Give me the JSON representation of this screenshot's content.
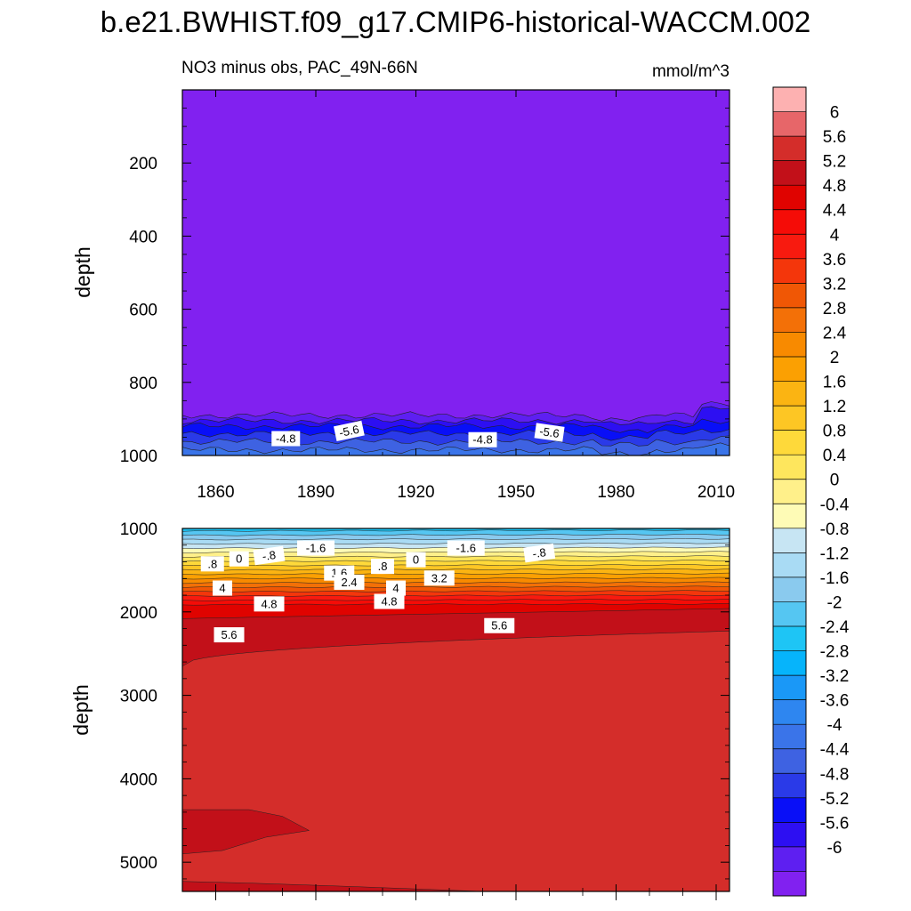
{
  "title": "b.e21.BWHIST.f09_g17.CMIP6-historical-WACCM.002",
  "colors": [
    "#8121f0",
    "#5e1ff1",
    "#2d0ff2",
    "#090ff7",
    "#2a3ae8",
    "#3e62e2",
    "#3a74e9",
    "#2e86f0",
    "#1a98f7",
    "#06b4fb",
    "#1ec5f5",
    "#55c6f2",
    "#8acaee",
    "#a9dbf4",
    "#c7e5f3",
    "#fefbb6",
    "#fff08a",
    "#fee65d",
    "#fed93a",
    "#fdc624",
    "#fbb412",
    "#fba002",
    "#f88a00",
    "#f37007",
    "#f05705",
    "#f4360b",
    "#f81a0f",
    "#f50c07",
    "#e00300",
    "#c21019",
    "#d42d2a",
    "#e76669",
    "#fdb1b1"
  ],
  "chart_data": [
    {
      "type": "contour",
      "subtitle_left": "NO3 minus obs, PAC_49N-66N",
      "subtitle_right": "mmol/m^3",
      "ylabel": "depth",
      "xlabel": "",
      "xlim": [
        1850,
        2014
      ],
      "ylim": [
        0,
        1000
      ],
      "y_inverted": true,
      "xticks": [
        "1860",
        "1890",
        "1920",
        "1950",
        "1980",
        "2010"
      ],
      "yticks": [
        "200",
        "400",
        "600",
        "800",
        "1000"
      ],
      "contour_labels": [
        "-4.8",
        "-5.6",
        "-4.8",
        "-5.6"
      ],
      "description_levels": {
        "surface_to_880m": -6,
        "880_to_1000m": "-6 to -3.6"
      }
    },
    {
      "type": "contour",
      "ylabel": "depth",
      "xlim": [
        1850,
        2014
      ],
      "ylim": [
        1000,
        5350
      ],
      "y_inverted": true,
      "yticks": [
        "1000",
        "2000",
        "3000",
        "4000",
        "5000"
      ],
      "contour_labels": [
        ".8",
        "0",
        "-.8",
        "-1.6",
        "-1.6",
        "-.8",
        "0",
        ".8",
        "1.6",
        "3.2",
        "2.4",
        "4",
        "4",
        "4.8",
        "4.8",
        "5.6",
        "5.6"
      ],
      "description_levels": {
        "1000_to_2000m": "-2 to 5.2",
        "2000_to_2500m": 5.6,
        "below_2500m": 6
      }
    }
  ],
  "colorbar": {
    "labels": [
      "6",
      "5.6",
      "5.2",
      "4.8",
      "4.4",
      "4",
      "3.6",
      "3.2",
      "2.8",
      "2.4",
      "2",
      "1.6",
      "1.2",
      "0.8",
      "0.4",
      "0",
      "-0.4",
      "-0.8",
      "-1.2",
      "-1.6",
      "-2",
      "-2.4",
      "-2.8",
      "-3.2",
      "-3.6",
      "-4",
      "-4.4",
      "-4.8",
      "-5.2",
      "-5.6",
      "-6"
    ]
  }
}
